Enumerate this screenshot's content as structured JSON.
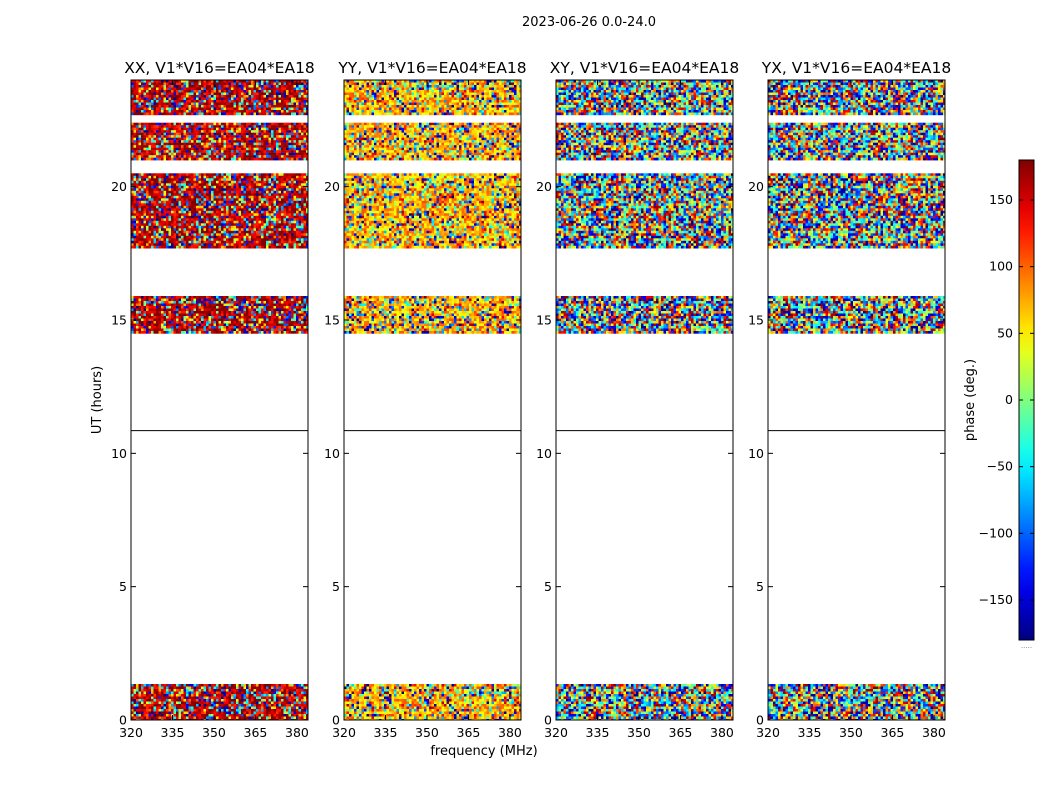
{
  "figure": {
    "suptitle": "2023-06-26 0.0-24.0",
    "xlabel": "frequency (MHz)",
    "ylabel": "UT (hours)",
    "colorbar_label": "phase (deg.)",
    "colorbar_ticks": [
      "150",
      "100",
      "50",
      "0",
      "−50",
      "−100",
      "−150"
    ],
    "colorbar_ellipsis": "....."
  },
  "chart_data": {
    "type": "heatmap",
    "colormap": "jet",
    "value_quantity": "phase (deg.)",
    "vmin": -180,
    "vmax": 180,
    "xlim": [
      320,
      384
    ],
    "ylim": [
      0,
      24
    ],
    "xticks": [
      320,
      335,
      350,
      365,
      380
    ],
    "yticks": [
      0,
      5,
      10,
      15,
      20
    ],
    "xtick_labels": [
      "320",
      "335",
      "350",
      "365",
      "380"
    ],
    "ytick_labels": [
      "0",
      "5",
      "10",
      "15",
      "20"
    ],
    "colorbar_ticks": [
      150,
      100,
      50,
      0,
      -50,
      -100,
      -150
    ],
    "data_bands_ut": [
      [
        0.0,
        1.35
      ],
      [
        14.5,
        15.9
      ],
      [
        17.7,
        20.5
      ],
      [
        21.0,
        22.4
      ],
      [
        22.7,
        24.0
      ]
    ],
    "panels": [
      {
        "title": "XX, V1*V16=EA04*EA18",
        "dominant_phase_deg": 160
      },
      {
        "title": "YY, V1*V16=EA04*EA18",
        "dominant_phase_deg": 70
      },
      {
        "title": "XY, V1*V16=EA04*EA18",
        "dominant_phase_deg": null
      },
      {
        "title": "YX, V1*V16=EA04*EA18",
        "dominant_phase_deg": null
      }
    ]
  }
}
